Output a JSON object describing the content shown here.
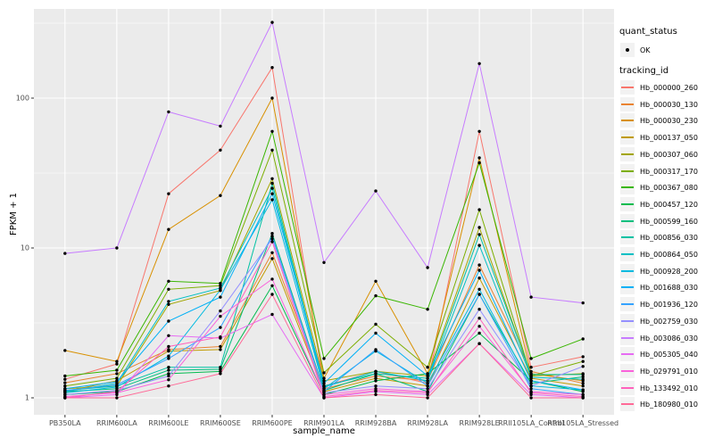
{
  "theme": {
    "panel_bg": "#EBEBEB",
    "grid_color": "#FFFFFF",
    "key_bg": "#F2F2F2",
    "tick_text_color": "#4D4D4D",
    "point_color": "#000000"
  },
  "legend": {
    "quant_status_title": "quant_status",
    "quant_status_items": [
      {
        "label": "OK",
        "symbol": "point"
      }
    ],
    "tracking_id_title": "tracking_id"
  },
  "chart_data": {
    "type": "line",
    "xlabel": "sample_name",
    "ylabel": "FPKM + 1",
    "y_scale": "log10",
    "y_ticks": [
      "1",
      "10",
      "100"
    ],
    "y_tick_values": [
      1,
      10,
      100
    ],
    "y_minor_values": [
      3.162,
      31.62,
      316.2
    ],
    "ylim": [
      0.77,
      420
    ],
    "grid": "on",
    "legend_position": "right",
    "point_shape": "small black point (quant_status = OK)",
    "categories": [
      "PB350LA",
      "RRIM600LA",
      "RRIM600LE",
      "RRIM600SE",
      "RRIM600PE",
      "RRIM901LA",
      "RRIM928BA",
      "RRIM928LA",
      "RRIM928LE",
      "RRII105LA_Control",
      "RRII105LA_Stressed"
    ],
    "series": [
      {
        "name": "Hb_000000_260",
        "color": "#F8766D",
        "values": [
          1.33,
          1.68,
          23,
          45,
          160,
          1.2,
          1.5,
          1.25,
          60,
          1.6,
          1.88
        ]
      },
      {
        "name": "Hb_000030_130",
        "color": "#EA8331",
        "values": [
          1.26,
          1.45,
          2.1,
          2.2,
          9.3,
          1.15,
          1.4,
          1.3,
          7.7,
          1.5,
          1.25
        ]
      },
      {
        "name": "Hb_000030_230",
        "color": "#D89000",
        "values": [
          2.07,
          1.75,
          13.3,
          22.4,
          100,
          1.35,
          6.0,
          1.45,
          40,
          1.45,
          1.3
        ]
      },
      {
        "name": "Hb_000137_050",
        "color": "#C09B00",
        "values": [
          1.1,
          1.3,
          2.05,
          2.1,
          8.5,
          1.1,
          1.35,
          1.2,
          6.3,
          1.35,
          1.2
        ]
      },
      {
        "name": "Hb_000307_060",
        "color": "#A3A500",
        "values": [
          1.15,
          1.2,
          4.2,
          5.2,
          29,
          1.3,
          1.5,
          1.4,
          13.7,
          1.4,
          1.45
        ]
      },
      {
        "name": "Hb_000317_170",
        "color": "#7CAE00",
        "values": [
          1.2,
          1.35,
          5.3,
          5.6,
          45,
          1.47,
          3.1,
          1.6,
          18,
          1.4,
          1.75
        ]
      },
      {
        "name": "Hb_000367_080",
        "color": "#39B600",
        "values": [
          1.4,
          1.53,
          6.0,
          5.8,
          60,
          1.83,
          4.8,
          3.9,
          37,
          1.83,
          2.47
        ]
      },
      {
        "name": "Hb_000457_120",
        "color": "#00BB4E",
        "values": [
          1.05,
          1.1,
          1.45,
          1.5,
          5.6,
          1.05,
          1.3,
          1.45,
          2.7,
          1.3,
          1.1
        ]
      },
      {
        "name": "Hb_000599_160",
        "color": "#00BF7D",
        "values": [
          1.1,
          1.15,
          1.53,
          1.55,
          12.5,
          1.12,
          1.45,
          1.1,
          4.9,
          1.25,
          1.38
        ]
      },
      {
        "name": "Hb_000856_030",
        "color": "#00C1A3",
        "values": [
          1.12,
          1.2,
          1.6,
          1.6,
          27,
          1.2,
          1.45,
          1.35,
          12.3,
          1.43,
          1.43
        ]
      },
      {
        "name": "Hb_000864_050",
        "color": "#00BFC4",
        "values": [
          1.1,
          1.25,
          4.4,
          5.4,
          25,
          1.18,
          1.5,
          1.3,
          10.4,
          1.37,
          1.33
        ]
      },
      {
        "name": "Hb_000928_200",
        "color": "#00BAE0",
        "values": [
          1.08,
          1.18,
          1.9,
          5.25,
          21,
          1.15,
          2.05,
          1.25,
          5.3,
          1.2,
          1.13
        ]
      },
      {
        "name": "Hb_001688_030",
        "color": "#00B0F6",
        "values": [
          1.15,
          1.28,
          3.25,
          4.7,
          23,
          1.25,
          2.7,
          1.4,
          7.1,
          1.3,
          1.13
        ]
      },
      {
        "name": "Hb_001936_120",
        "color": "#35A2FF",
        "values": [
          1.12,
          1.22,
          1.83,
          2.95,
          12,
          1.1,
          2.1,
          1.2,
          4.9,
          1.15,
          1.05
        ]
      },
      {
        "name": "Hb_002759_030",
        "color": "#9590FF",
        "values": [
          1.05,
          1.12,
          1.4,
          3.8,
          11.5,
          1.08,
          1.2,
          1.15,
          3.9,
          1.2,
          1.62
        ]
      },
      {
        "name": "Hb_003086_030",
        "color": "#C77CFF",
        "values": [
          9.2,
          10,
          81,
          65,
          320,
          8.0,
          24,
          7.4,
          170,
          4.7,
          4.3
        ]
      },
      {
        "name": "Hb_005305_040",
        "color": "#E76BF3",
        "values": [
          1.0,
          1.05,
          2.6,
          2.5,
          3.6,
          1.0,
          1.1,
          1.05,
          2.3,
          1.05,
          1.0
        ]
      },
      {
        "name": "Hb_029791_010",
        "color": "#FA62DB",
        "values": [
          1.02,
          1.08,
          1.32,
          3.5,
          6.2,
          1.05,
          1.15,
          1.1,
          3.0,
          1.1,
          1.05
        ]
      },
      {
        "name": "Hb_133492_010",
        "color": "#FF62BC",
        "values": [
          1.0,
          1.1,
          2.2,
          2.55,
          11,
          1.02,
          1.12,
          1.08,
          3.4,
          1.08,
          1.02
        ]
      },
      {
        "name": "Hb_180980_010",
        "color": "#FF6A98",
        "values": [
          1.0,
          1.0,
          1.2,
          1.45,
          4.9,
          1.0,
          1.05,
          1.0,
          2.3,
          1.0,
          1.0
        ]
      }
    ]
  }
}
